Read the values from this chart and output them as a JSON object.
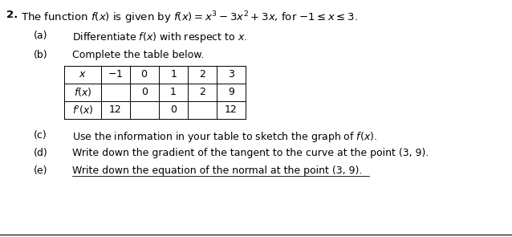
{
  "title_bold": "2.",
  "title_text": "The function $f(x)$ is given by $f(x) = x^3 - 3x^2 + 3x$, for $-1 \\leq x \\leq 3$.",
  "part_a_label": "(a)",
  "part_a_text": "Differentiate $f(x)$ with respect to $x$.",
  "part_b_label": "(b)",
  "part_b_text": "Complete the table below.",
  "table_headers": [
    "$x$",
    "$-1$",
    "$0$",
    "$1$",
    "$2$",
    "$3$"
  ],
  "row1_label": "$f(x)$",
  "row1_values": [
    "",
    "0",
    "1",
    "2",
    "9"
  ],
  "row2_label": "$f'(x)$",
  "row2_values": [
    "12",
    "",
    "0",
    "",
    "12"
  ],
  "part_c_label": "(c)",
  "part_c_text": "Use the information in your table to sketch the graph of $f(x)$.",
  "part_d_label": "(d)",
  "part_d_text": "Write down the gradient of the tangent to the curve at the point (3, 9).",
  "part_e_label": "(e)",
  "part_e_text": "Write down the equation of the normal at the point (3, 9).",
  "bg_color": "#ffffff",
  "text_color": "#000000",
  "font_size_title": 9.5,
  "font_size_body": 9.0,
  "table_font_size": 9.0
}
